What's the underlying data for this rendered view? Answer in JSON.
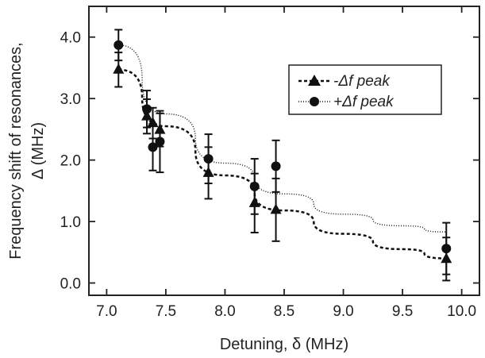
{
  "chart_data": {
    "type": "scatter",
    "xlabel": "Detuning, δ (MHz)",
    "ylabel_line1": "Frequency shift of resonances,",
    "ylabel_line2": "Δ (MHz)",
    "xlim": [
      6.85,
      10.15
    ],
    "ylim": [
      -0.2,
      4.5
    ],
    "xticks": [
      "7.0",
      "7.5",
      "8.0",
      "8.5",
      "9.0",
      "9.5",
      "10.0"
    ],
    "yticks": [
      "0.0",
      "1.0",
      "2.0",
      "3.0",
      "4.0"
    ],
    "grid": false,
    "legend_position": "top-right",
    "series": [
      {
        "name": "-Δf peak",
        "marker": "triangle",
        "line_style": "dashed",
        "color": "#111111",
        "x": [
          7.1,
          7.34,
          7.39,
          7.45,
          7.86,
          8.25,
          8.43,
          9.87
        ],
        "y": [
          3.47,
          2.71,
          2.6,
          2.49,
          1.79,
          1.3,
          1.19,
          0.39
        ],
        "err": [
          0.28,
          0.28,
          0.25,
          0.27,
          0.42,
          0.48,
          0.51,
          0.35
        ],
        "fit_x": [
          7.1,
          10.0
        ],
        "fit_y": [
          3.47,
          0.39
        ],
        "fit_curve": [
          [
            7.1,
            3.47
          ],
          [
            7.5,
            2.55
          ],
          [
            8.0,
            1.75
          ],
          [
            8.5,
            1.18
          ],
          [
            9.0,
            0.8
          ],
          [
            9.5,
            0.55
          ],
          [
            9.87,
            0.4
          ]
        ]
      },
      {
        "name": "+Δf peak",
        "marker": "circle",
        "line_style": "dotted",
        "color": "#111111",
        "x": [
          7.1,
          7.34,
          7.39,
          7.45,
          7.86,
          8.25,
          8.43,
          9.87
        ],
        "y": [
          3.87,
          2.83,
          2.21,
          2.3,
          2.02,
          1.57,
          1.9,
          0.56
        ],
        "err": [
          0.25,
          0.3,
          0.38,
          0.5,
          0.4,
          0.45,
          0.42,
          0.42
        ],
        "fit_curve": [
          [
            7.1,
            3.87
          ],
          [
            7.5,
            2.75
          ],
          [
            8.0,
            1.95
          ],
          [
            8.5,
            1.45
          ],
          [
            9.0,
            1.12
          ],
          [
            9.5,
            0.93
          ],
          [
            9.87,
            0.83
          ]
        ]
      }
    ],
    "legend": {
      "label_neg": "-Δf peak",
      "label_pos": "+Δf peak"
    }
  }
}
